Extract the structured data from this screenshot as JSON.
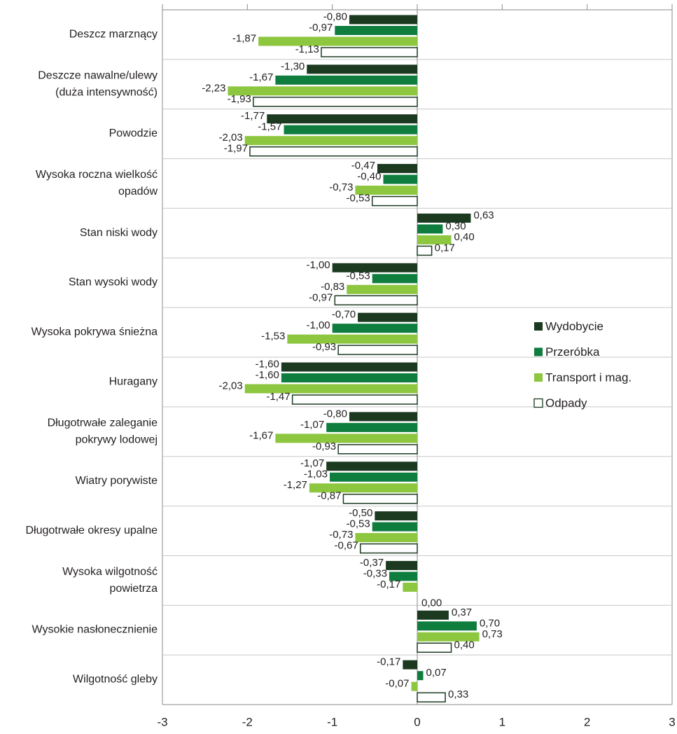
{
  "chart_data": {
    "type": "bar",
    "orientation": "horizontal",
    "categories": [
      [
        "Deszcz marznący"
      ],
      [
        "Deszcze nawalne/ulewy",
        "(duża intensywność)"
      ],
      [
        "Powodzie"
      ],
      [
        "Wysoka roczna wielkość",
        "opadów"
      ],
      [
        "Stan niski wody"
      ],
      [
        "Stan wysoki wody"
      ],
      [
        "Wysoka pokrywa śnieżna"
      ],
      [
        "Huragany"
      ],
      [
        "Długotrwałe zaleganie",
        "pokrywy lodowej"
      ],
      [
        "Wiatry porywiste"
      ],
      [
        "Długotrwałe okresy upalne"
      ],
      [
        "Wysoka wilgotność",
        "powietrza"
      ],
      [
        "Wysokie nasłonecznienie"
      ],
      [
        "Wilgotność gleby"
      ]
    ],
    "series": [
      {
        "name": "Wydobycie",
        "color": "#1b3a20",
        "values": [
          -0.8,
          -1.3,
          -1.77,
          -0.47,
          0.63,
          -1.0,
          -0.7,
          -1.6,
          -0.8,
          -1.07,
          -0.5,
          -0.37,
          0.37,
          -0.17
        ],
        "value_labels": [
          "-0,80",
          "-1,30",
          "-1,77",
          "-0,47",
          "0,63",
          "-1,00",
          "-0,70",
          "-1,60",
          "-0,80",
          "-1,07",
          "-0,50",
          "-0,37",
          "0,37",
          "-0,17"
        ]
      },
      {
        "name": "Przeróbka",
        "color": "#0e7d3e",
        "values": [
          -0.97,
          -1.67,
          -1.57,
          -0.4,
          0.3,
          -0.53,
          -1.0,
          -1.6,
          -1.07,
          -1.03,
          -0.53,
          -0.33,
          0.7,
          0.07
        ],
        "value_labels": [
          "-0,97",
          "-1,67",
          "-1,57",
          "-0,40",
          "0,30",
          "-0,53",
          "-1,00",
          "-1,60",
          "-1,07",
          "-1,03",
          "-0,53",
          "-0,33",
          "0,70",
          "0,07"
        ]
      },
      {
        "name": "Transport i mag.",
        "color": "#8dc63f",
        "values": [
          -1.87,
          -2.23,
          -2.03,
          -0.73,
          0.4,
          -0.83,
          -1.53,
          -2.03,
          -1.67,
          -1.27,
          -0.73,
          -0.17,
          0.73,
          -0.07
        ],
        "value_labels": [
          "-1,87",
          "-2,23",
          "-2,03",
          "-0,73",
          "0,40",
          "-0,83",
          "-1,53",
          "-2,03",
          "-1,67",
          "-1,27",
          "-0,73",
          "-0,17",
          "0,73",
          "-0,07"
        ]
      },
      {
        "name": "Odpady",
        "color": "#ffffff",
        "values": [
          -1.13,
          -1.93,
          -1.97,
          -0.53,
          0.17,
          -0.97,
          -0.93,
          -1.47,
          -0.93,
          -0.87,
          -0.67,
          0.0,
          0.4,
          0.33
        ],
        "value_labels": [
          "-1,13",
          "-1,93",
          "-1,97",
          "-0,53",
          "0,17",
          "-0,97",
          "-0,93",
          "-1,47",
          "-0,93",
          "-0,87",
          "-0,67",
          "0,00",
          "0,40",
          "0,33"
        ]
      }
    ],
    "xlim": [
      -3,
      3
    ],
    "xticks": [
      -3,
      -2,
      -1,
      0,
      1,
      2,
      3
    ]
  }
}
